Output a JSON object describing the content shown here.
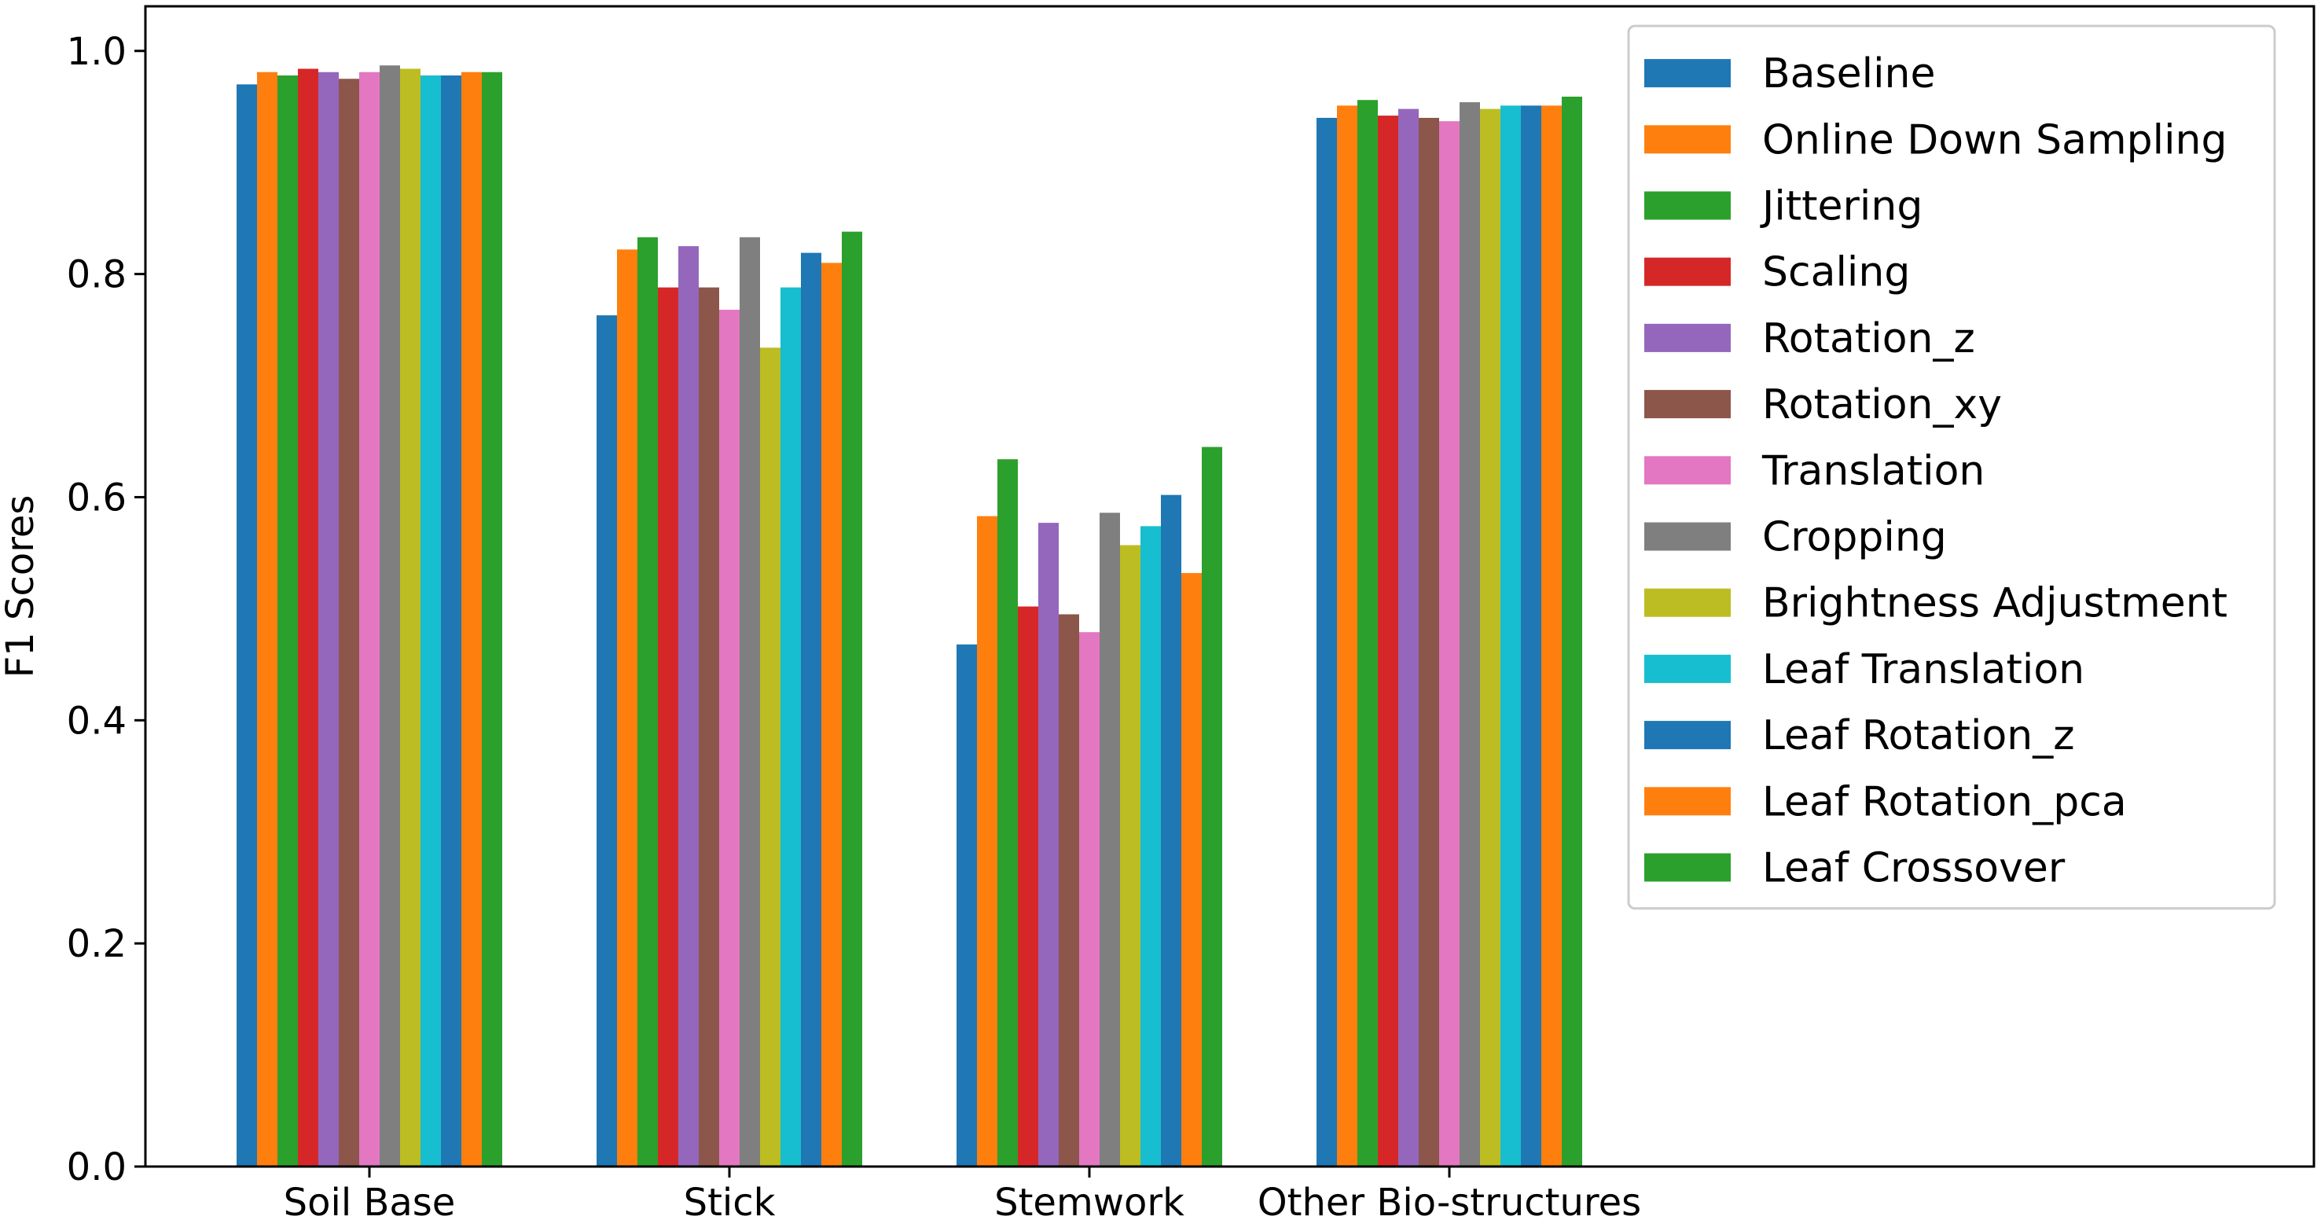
{
  "chart_data": {
    "type": "bar",
    "title": "",
    "xlabel": "",
    "ylabel": "F1 Scores",
    "ylim": [
      0,
      1.04
    ],
    "yticks": [
      "0.0",
      "0.2",
      "0.4",
      "0.6",
      "0.8",
      "1.0"
    ],
    "ytick_values": [
      0,
      0.2,
      0.4,
      0.6,
      0.8,
      1.0
    ],
    "categories": [
      "Soil Base",
      "Stick",
      "Stemwork",
      "Other Bio-structures"
    ],
    "legend_position": "upper right",
    "grid": false,
    "series": [
      {
        "name": "Baseline",
        "color": "#1f77b4",
        "values": [
          0.97,
          0.763,
          0.468,
          0.94
        ]
      },
      {
        "name": "Online Down Sampling",
        "color": "#ff7f0e",
        "values": [
          0.981,
          0.822,
          0.583,
          0.951
        ]
      },
      {
        "name": "Jittering",
        "color": "#2ca02c",
        "values": [
          0.978,
          0.833,
          0.634,
          0.956
        ]
      },
      {
        "name": "Scaling",
        "color": "#d62728",
        "values": [
          0.984,
          0.788,
          0.502,
          0.942
        ]
      },
      {
        "name": "Rotation_z",
        "color": "#9467bd",
        "values": [
          0.981,
          0.825,
          0.577,
          0.948
        ]
      },
      {
        "name": "Rotation_xy",
        "color": "#8c564b",
        "values": [
          0.975,
          0.788,
          0.495,
          0.94
        ]
      },
      {
        "name": "Translation",
        "color": "#e377c2",
        "values": [
          0.981,
          0.768,
          0.479,
          0.937
        ]
      },
      {
        "name": "Cropping",
        "color": "#7f7f7f",
        "values": [
          0.987,
          0.833,
          0.586,
          0.954
        ]
      },
      {
        "name": "Brightness Adjustment",
        "color": "#bcbd22",
        "values": [
          0.984,
          0.734,
          0.557,
          0.948
        ]
      },
      {
        "name": "Leaf Translation",
        "color": "#17becf",
        "values": [
          0.978,
          0.788,
          0.574,
          0.951
        ]
      },
      {
        "name": "Leaf Rotation_z",
        "color": "#1f77b4",
        "values": [
          0.978,
          0.819,
          0.602,
          0.951
        ]
      },
      {
        "name": "Leaf Rotation_pca",
        "color": "#ff7f0e",
        "values": [
          0.981,
          0.81,
          0.532,
          0.951
        ]
      },
      {
        "name": "Leaf Crossover",
        "color": "#2ca02c",
        "values": [
          0.981,
          0.838,
          0.645,
          0.959
        ]
      }
    ]
  }
}
